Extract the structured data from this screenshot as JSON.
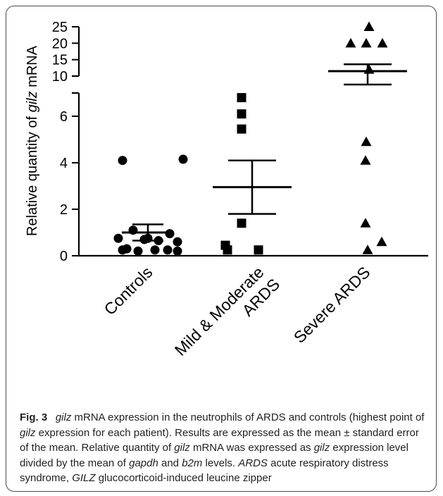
{
  "chart_data": {
    "type": "scatter",
    "ylabel_prefix": "Relative quantity of ",
    "ylabel_italic": "gilz",
    "ylabel_suffix": " mRNA",
    "lower_axis": {
      "range": [
        0,
        7
      ],
      "ticks": [
        0,
        2,
        4,
        6
      ]
    },
    "upper_axis": {
      "range": [
        10,
        25
      ],
      "ticks": [
        10,
        15,
        20,
        25
      ]
    },
    "categories": [
      "Controls",
      "Mild & Moderate\nARDS",
      "Severe ARDS"
    ],
    "series": [
      {
        "marker": "circle",
        "values": [
          4.1,
          4.15,
          1.1,
          0.95,
          0.75,
          0.75,
          0.7,
          0.65,
          0.6,
          0.3,
          0.25,
          0.25,
          0.25,
          0.2,
          0.2
        ],
        "mean": 1.0,
        "sem_low": 0.65,
        "sem_high": 1.35
      },
      {
        "marker": "square",
        "values": [
          6.8,
          6.1,
          5.45,
          1.4,
          0.45,
          0.25,
          0.25
        ],
        "mean": 2.95,
        "sem_low": 1.8,
        "sem_high": 4.1
      },
      {
        "marker": "triangle",
        "values": [
          25.0,
          20.0,
          20.0,
          20.0,
          12.0,
          4.9,
          4.1,
          1.4,
          0.6,
          0.25
        ],
        "mean": 11.5,
        "sem_low": 9.2,
        "sem_high": 13.6
      }
    ],
    "colors": {
      "marker": "#000000",
      "axis": "#000000",
      "frame": "#4a4a4a"
    }
  },
  "caption": {
    "fig_label": "Fig. 3",
    "parts": [
      {
        "t": "gilz",
        "i": true
      },
      {
        "t": " mRNA expression in the neutrophils of ARDS and controls (highest point of ",
        "i": false
      },
      {
        "t": "gilz",
        "i": true
      },
      {
        "t": " expression for each patient). Results are expressed as the mean ± standard error of the mean. Relative quantity of ",
        "i": false
      },
      {
        "t": "gilz",
        "i": true
      },
      {
        "t": " mRNA was expressed as ",
        "i": false
      },
      {
        "t": "gilz",
        "i": true
      },
      {
        "t": " expression level divided by the mean of ",
        "i": false
      },
      {
        "t": "gapdh",
        "i": true
      },
      {
        "t": " and ",
        "i": false
      },
      {
        "t": "b2m",
        "i": true
      },
      {
        "t": " levels. ",
        "i": false
      },
      {
        "t": "ARDS",
        "i": true
      },
      {
        "t": " acute respiratory distress syndrome, ",
        "i": false
      },
      {
        "t": "GILZ",
        "i": true
      },
      {
        "t": " glucocorticoid-induced leucine zipper",
        "i": false
      }
    ]
  }
}
